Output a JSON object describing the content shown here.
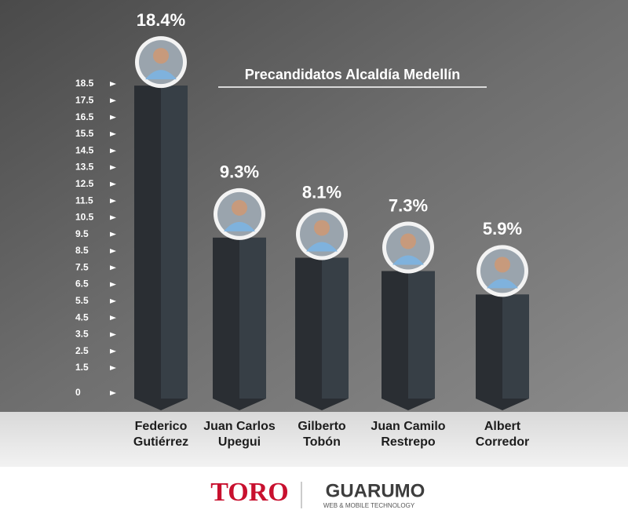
{
  "chart_data": {
    "type": "bar",
    "title": "Precandidatos Alcaldía Medellín",
    "categories": [
      "Federico Gutiérrez",
      "Juan Carlos Upegui",
      "Gilberto Tobón",
      "Juan Camilo Restrepo",
      "Albert Corredor"
    ],
    "values": [
      18.4,
      9.3,
      8.1,
      7.3,
      5.9
    ],
    "value_labels": [
      "18.4%",
      "9.3%",
      "8.1%",
      "7.3%",
      "5.9%"
    ],
    "color": "#2a2e33",
    "ylim": [
      0,
      18.5
    ],
    "yticks": [
      0,
      1.5,
      2.5,
      3.5,
      4.5,
      5.5,
      6.5,
      7.5,
      8.5,
      9.5,
      10.5,
      11.5,
      12.5,
      13.5,
      14.5,
      15.5,
      16.5,
      17.5,
      18.5
    ]
  },
  "footer": {
    "brand": "TORO",
    "partner": "GUARUMO",
    "partner_tagline": "WEB & MOBILE TECHNOLOGY"
  }
}
